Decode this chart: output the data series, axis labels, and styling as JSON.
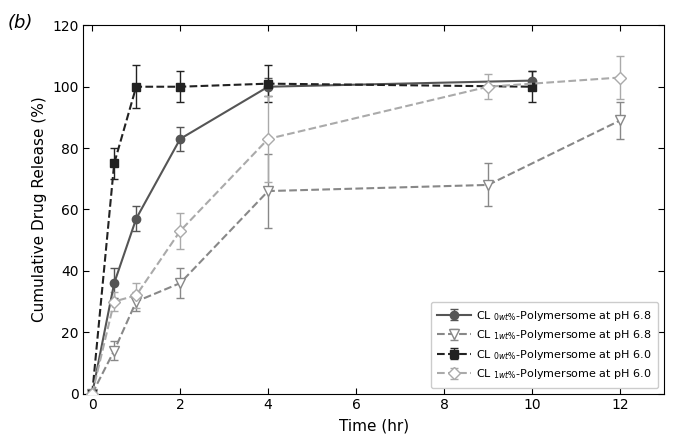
{
  "title": "(b)",
  "xlabel": "Time (hr)",
  "ylabel": "Cumulative Drug Release (%)",
  "xlim": [
    -0.2,
    13
  ],
  "ylim": [
    0,
    120
  ],
  "xticks": [
    0,
    2,
    4,
    6,
    8,
    10,
    12
  ],
  "yticks": [
    0,
    20,
    40,
    60,
    80,
    100,
    120
  ],
  "series": [
    {
      "label": "CL $_{0wt\\%}$-Polymersome at pH 6.8",
      "x": [
        0,
        0.5,
        1,
        2,
        4,
        10
      ],
      "y": [
        0,
        36,
        57,
        83,
        100,
        102
      ],
      "yerr": [
        0,
        5,
        4,
        4,
        3,
        3
      ],
      "color": "#555555",
      "linestyle": "-",
      "marker": "o",
      "markerfacecolor": "#555555",
      "markeredgecolor": "#555555",
      "markersize": 6,
      "linewidth": 1.5
    },
    {
      "label": "CL $_{1wt\\%}$-Polymersome at pH 6.8",
      "x": [
        0,
        0.5,
        1,
        2,
        4,
        9,
        12
      ],
      "y": [
        0,
        14,
        30,
        36,
        66,
        68,
        89
      ],
      "yerr": [
        0,
        3,
        3,
        5,
        12,
        7,
        6
      ],
      "color": "#888888",
      "linestyle": "--",
      "marker": "v",
      "markerfacecolor": "white",
      "markeredgecolor": "#888888",
      "markersize": 7,
      "linewidth": 1.5
    },
    {
      "label": "CL $_{0wt\\%}$-Polymersome at pH 6.0",
      "x": [
        0,
        0.5,
        1,
        2,
        4,
        10
      ],
      "y": [
        0,
        75,
        100,
        100,
        101,
        100
      ],
      "yerr": [
        0,
        5,
        7,
        5,
        6,
        5
      ],
      "color": "#222222",
      "linestyle": "--",
      "marker": "s",
      "markerfacecolor": "#222222",
      "markeredgecolor": "#222222",
      "markersize": 6,
      "linewidth": 1.5
    },
    {
      "label": "CL $_{1wt\\%}$-Polymersome at pH 6.0",
      "x": [
        0,
        0.5,
        1,
        2,
        4,
        9,
        12
      ],
      "y": [
        0,
        30,
        32,
        53,
        83,
        100,
        103
      ],
      "yerr": [
        0,
        3,
        4,
        6,
        14,
        4,
        7
      ],
      "color": "#aaaaaa",
      "linestyle": "--",
      "marker": "D",
      "markerfacecolor": "white",
      "markeredgecolor": "#aaaaaa",
      "markersize": 6,
      "linewidth": 1.5
    }
  ],
  "figsize": [
    6.79,
    4.48
  ],
  "dpi": 100
}
